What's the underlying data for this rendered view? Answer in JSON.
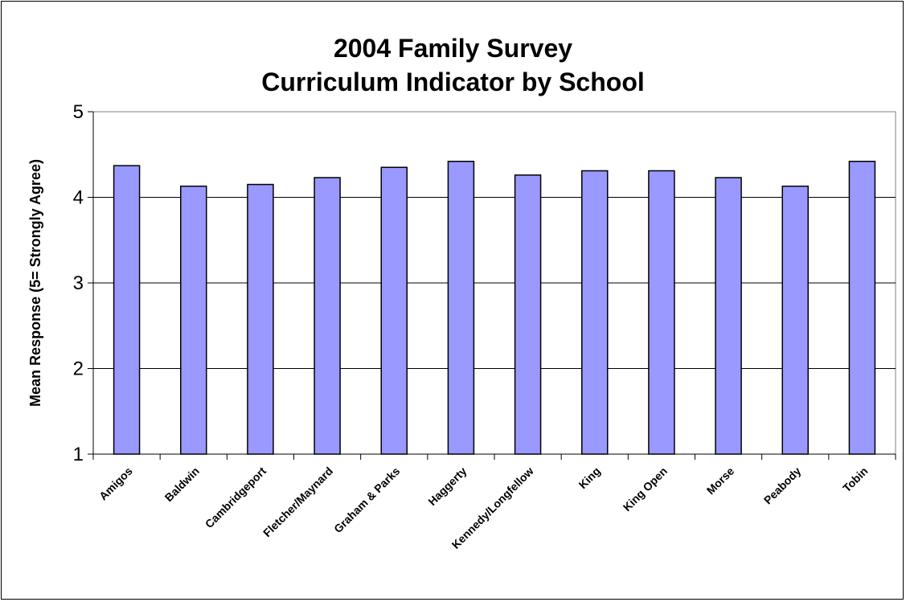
{
  "chart_data": {
    "type": "bar",
    "title_lines": [
      "2004 Family Survey",
      "Curriculum Indicator by School"
    ],
    "xlabel": "",
    "ylabel": "Mean Response (5= Strongly Agree)",
    "categories": [
      "Amigos",
      "Baldwin",
      "Cambridgeport",
      "Fletcher/Maynard",
      "Graham & Parks",
      "Haggerty",
      "Kennedy/Longfellow",
      "King",
      "King Open",
      "Morse",
      "Peabody",
      "Tobin"
    ],
    "values": [
      4.37,
      4.13,
      4.15,
      4.23,
      4.35,
      4.42,
      4.26,
      4.31,
      4.31,
      4.23,
      4.13,
      4.42
    ],
    "ylim": [
      1,
      5
    ],
    "yticks": [
      "1",
      "2",
      "3",
      "4",
      "5"
    ],
    "grid": true,
    "legend": "none",
    "colors": {
      "bar_fill": "#9999ff",
      "bar_stroke": "#000000",
      "plot_background": "#ffffff",
      "gridline": "#000000"
    }
  }
}
